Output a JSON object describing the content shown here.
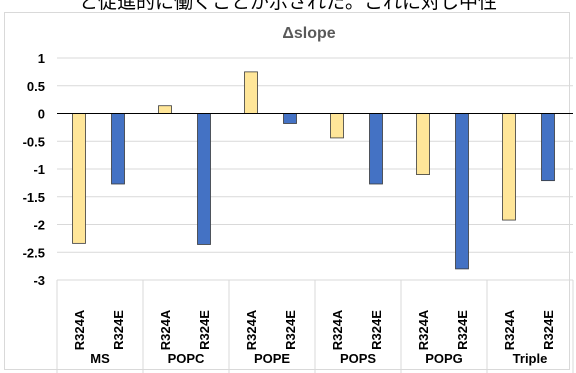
{
  "caption_fragment": "と促進的に働くことが示された。これに対し中性",
  "chart_data": {
    "type": "bar",
    "title": "Δslope",
    "xlabel": "",
    "ylabel": "",
    "ylim": [
      -3,
      1
    ],
    "yticks": [
      "1",
      "0.5",
      "0",
      "-0.5",
      "-1",
      "-1.5",
      "-2",
      "-2.5",
      "-3"
    ],
    "ytick_values": [
      1,
      0.5,
      0,
      -0.5,
      -1,
      -1.5,
      -2,
      -2.5,
      -3
    ],
    "grid": true,
    "legend": "none",
    "colors": {
      "R324A": "#ffe699",
      "R324E": "#4472c4",
      "bar_edge": "#3a3a3a",
      "grid": "#d9d9d9"
    },
    "groups": [
      {
        "name": "MS",
        "categories": [
          "R324A",
          "R324E"
        ],
        "values": [
          -2.34,
          -1.27
        ]
      },
      {
        "name": "POPC",
        "categories": [
          "R324A",
          "R324E"
        ],
        "values": [
          0.14,
          -2.36
        ]
      },
      {
        "name": "POPE",
        "categories": [
          "R324A",
          "R324E"
        ],
        "values": [
          0.75,
          -0.18
        ]
      },
      {
        "name": "POPS",
        "categories": [
          "R324A",
          "R324E"
        ],
        "values": [
          -0.44,
          -1.27
        ]
      },
      {
        "name": "POPG",
        "categories": [
          "R324A",
          "R324E"
        ],
        "values": [
          -1.1,
          -2.8
        ]
      },
      {
        "name": "Triple",
        "categories": [
          "R324A",
          "R324E"
        ],
        "values": [
          -1.92,
          -1.21
        ]
      }
    ]
  }
}
